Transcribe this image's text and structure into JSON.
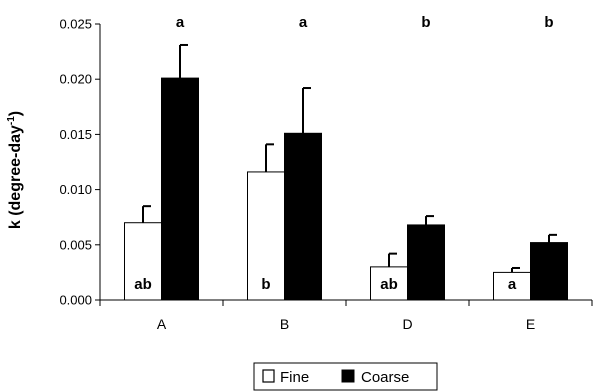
{
  "chart_data": {
    "type": "bar",
    "ylabel": "k (degree-day",
    "ylabel_superscript": "-1",
    "ylabel_close": ")",
    "ylim": [
      0,
      0.025
    ],
    "yticks": [
      "0.000",
      "0.005",
      "0.010",
      "0.015",
      "0.020",
      "0.025"
    ],
    "categories": [
      "A",
      "B",
      "D",
      "E"
    ],
    "series": [
      {
        "name": "Fine",
        "color": "#ffffff",
        "values": [
          0.007,
          0.0116,
          0.003,
          0.0025
        ],
        "errors": [
          0.0015,
          0.0025,
          0.0012,
          0.0004
        ],
        "labels": [
          "ab",
          "b",
          "ab",
          "a"
        ]
      },
      {
        "name": "Coarse",
        "color": "#000000",
        "values": [
          0.0201,
          0.0151,
          0.0068,
          0.0052
        ],
        "errors": [
          0.003,
          0.0041,
          0.0008,
          0.0007
        ]
      }
    ],
    "top_labels": [
      "a",
      "a",
      "b",
      "b"
    ],
    "legend_position": "bottom-center",
    "grid": false
  }
}
